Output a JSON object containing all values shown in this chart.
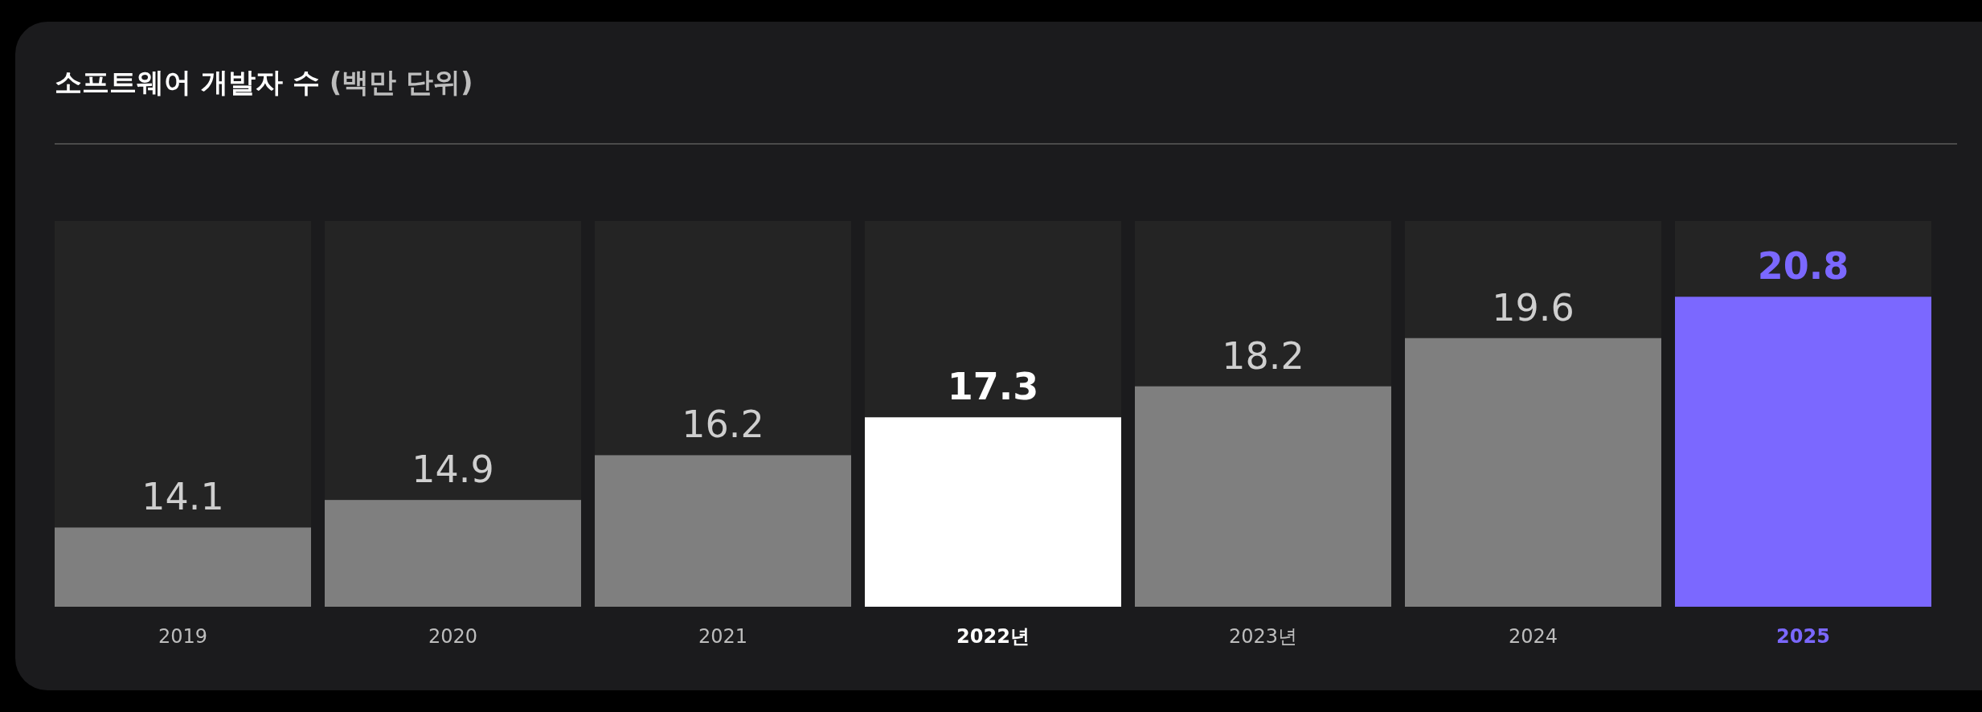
{
  "chart_data": {
    "type": "bar",
    "title": "소프트웨어 개발자 수",
    "subtitle": "(백만 단위)",
    "categories": [
      "2019",
      "2020",
      "2021",
      "2022년",
      "2023년",
      "2024",
      "2025"
    ],
    "values": [
      14.1,
      14.9,
      16.2,
      17.3,
      18.2,
      19.6,
      20.8
    ],
    "color": "#7f7f7f",
    "colors": [
      "#7f7f7f",
      "#7f7f7f",
      "#7f7f7f",
      "#ffffff",
      "#7f7f7f",
      "#7f7f7f",
      "#7b68ff"
    ],
    "ylim": [
      11.8,
      23
    ],
    "data_labels": true
  }
}
